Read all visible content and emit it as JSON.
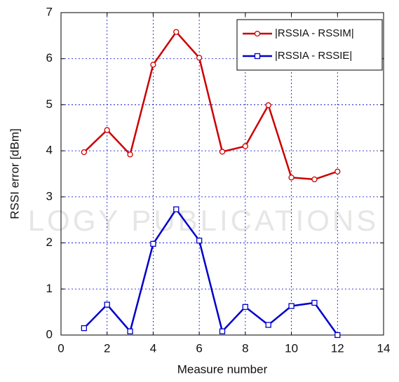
{
  "chart_data": {
    "type": "line",
    "x_label": "Measure number",
    "y_label": "RSSI error [dBm]",
    "watermark": "LOGY PUBLICATIONS",
    "xlim": [
      0,
      14
    ],
    "xticks": [
      0,
      2,
      4,
      6,
      8,
      10,
      12,
      14
    ],
    "ylim": [
      0,
      7
    ],
    "yticks": [
      0,
      1,
      2,
      3,
      4,
      5,
      6,
      7
    ],
    "grid": true,
    "legend": "upper right",
    "x": [
      1,
      2,
      3,
      4,
      5,
      6,
      7,
      8,
      9,
      10,
      11,
      12
    ],
    "series": [
      {
        "name": "|RSSIA - RSSIM|",
        "color": "#cc0000",
        "marker": "circle",
        "values": [
          3.97,
          4.45,
          3.92,
          5.87,
          6.58,
          6.02,
          3.98,
          4.1,
          4.99,
          3.42,
          3.38,
          3.55
        ]
      },
      {
        "name": "|RSSIA - RSSIE|",
        "color": "#0000cc",
        "marker": "square",
        "values": [
          0.15,
          0.66,
          0.08,
          1.98,
          2.73,
          2.05,
          0.08,
          0.61,
          0.22,
          0.63,
          0.7,
          0.0
        ]
      }
    ]
  }
}
